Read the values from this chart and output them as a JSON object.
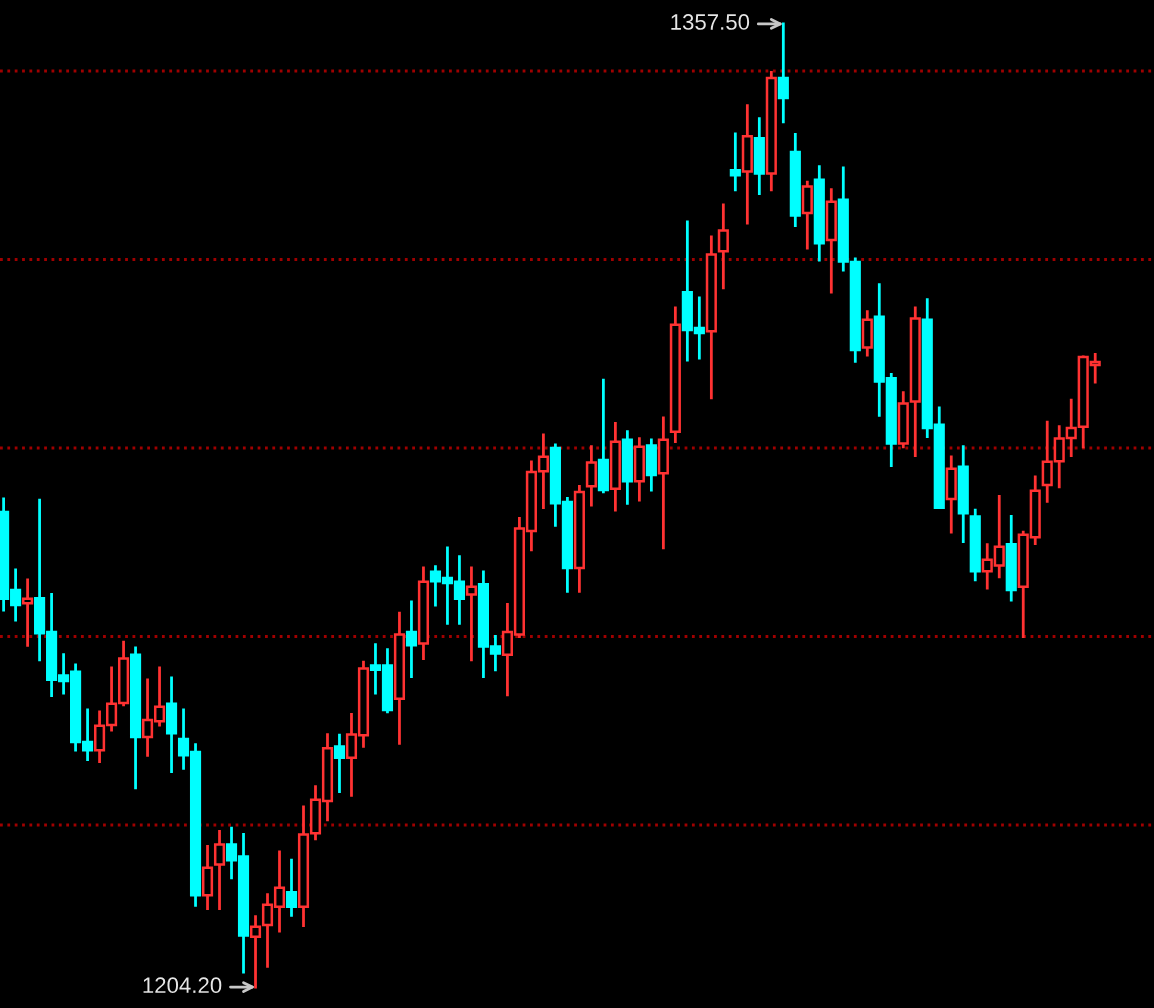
{
  "chart_data": {
    "type": "candlestick",
    "categories": [
      null,
      null,
      null,
      null,
      null,
      null,
      null,
      null,
      null,
      null,
      null,
      null,
      null,
      null,
      null,
      null,
      null,
      null,
      null,
      null,
      null,
      null,
      null,
      null,
      null,
      null,
      null,
      null,
      null,
      null,
      null,
      null,
      null,
      null,
      null,
      null,
      null,
      null,
      null,
      null,
      null,
      null,
      null,
      null,
      null,
      null,
      null,
      null,
      null,
      null,
      null,
      null,
      null,
      null,
      null,
      null,
      null,
      null,
      null,
      null,
      null,
      null,
      null,
      null,
      null,
      null,
      null,
      null,
      null,
      null,
      null,
      null,
      null,
      null,
      null,
      null,
      null,
      null,
      null,
      null,
      null,
      null,
      null,
      null,
      null,
      null,
      null,
      null,
      null,
      null,
      null,
      null
    ],
    "ohlc": [
      [
        1279.8,
        1281.9,
        1264.2,
        1266.0
      ],
      [
        1267.4,
        1270.6,
        1262.6,
        1265.0
      ],
      [
        1265.3,
        1269.0,
        1258.6,
        1266.0
      ],
      [
        1266.1,
        1281.7,
        1256.3,
        1260.5
      ],
      [
        1260.7,
        1266.7,
        1250.6,
        1253.1
      ],
      [
        1253.8,
        1257.1,
        1251.0,
        1252.9
      ],
      [
        1254.4,
        1255.5,
        1241.9,
        1243.2
      ],
      [
        1243.2,
        1248.3,
        1240.4,
        1241.9
      ],
      [
        1241.9,
        1248.0,
        1240.1,
        1245.8
      ],
      [
        1245.9,
        1255.0,
        1245.1,
        1249.3
      ],
      [
        1249.4,
        1259.1,
        1249.1,
        1256.5
      ],
      [
        1257.1,
        1258.2,
        1235.9,
        1244.0
      ],
      [
        1244.0,
        1253.1,
        1241.1,
        1246.7
      ],
      [
        1246.5,
        1255.0,
        1245.9,
        1248.8
      ],
      [
        1249.3,
        1253.4,
        1238.5,
        1244.6
      ],
      [
        1243.7,
        1248.3,
        1239.0,
        1241.1
      ],
      [
        1241.6,
        1242.8,
        1217.2,
        1218.8
      ],
      [
        1218.8,
        1226.6,
        1216.7,
        1223.2
      ],
      [
        1223.7,
        1229.0,
        1216.7,
        1226.9
      ],
      [
        1226.9,
        1229.5,
        1221.6,
        1224.4
      ],
      [
        1225.0,
        1228.5,
        1206.6,
        1212.4
      ],
      [
        1212.2,
        1215.4,
        1204.2,
        1213.8
      ],
      [
        1214.1,
        1218.9,
        1207.5,
        1217.3
      ],
      [
        1217.0,
        1225.7,
        1213.1,
        1220.0
      ],
      [
        1219.3,
        1224.4,
        1215.6,
        1217.0
      ],
      [
        1217.0,
        1232.9,
        1214.0,
        1228.5
      ],
      [
        1228.7,
        1236.1,
        1227.8,
        1234.0
      ],
      [
        1233.8,
        1244.4,
        1230.8,
        1242.2
      ],
      [
        1242.5,
        1244.3,
        1235.3,
        1240.7
      ],
      [
        1240.7,
        1247.6,
        1234.7,
        1244.4
      ],
      [
        1244.3,
        1255.9,
        1242.5,
        1254.9
      ],
      [
        1255.4,
        1258.7,
        1251.0,
        1254.7
      ],
      [
        1255.4,
        1257.9,
        1248.0,
        1248.3
      ],
      [
        1250.1,
        1263.7,
        1243.0,
        1260.3
      ],
      [
        1260.7,
        1265.5,
        1253.6,
        1258.6
      ],
      [
        1258.9,
        1270.9,
        1256.5,
        1268.7
      ],
      [
        1270.3,
        1271.1,
        1265.0,
        1268.8
      ],
      [
        1269.3,
        1274.1,
        1262.1,
        1268.5
      ],
      [
        1268.7,
        1272.7,
        1262.1,
        1266.0
      ],
      [
        1266.7,
        1270.9,
        1256.3,
        1267.9
      ],
      [
        1268.3,
        1270.3,
        1253.6,
        1258.4
      ],
      [
        1258.4,
        1260.0,
        1254.7,
        1257.3
      ],
      [
        1257.1,
        1265.1,
        1250.7,
        1260.7
      ],
      [
        1260.3,
        1278.8,
        1260.0,
        1277.2
      ],
      [
        1276.8,
        1287.8,
        1273.8,
        1286.2
      ],
      [
        1286.3,
        1292.1,
        1280.5,
        1288.6
      ],
      [
        1290.0,
        1290.5,
        1277.7,
        1281.2
      ],
      [
        1281.4,
        1282.0,
        1267.2,
        1270.9
      ],
      [
        1270.9,
        1283.9,
        1267.2,
        1283.0
      ],
      [
        1283.9,
        1290.2,
        1280.9,
        1287.7
      ],
      [
        1288.1,
        1300.8,
        1283.0,
        1283.3
      ],
      [
        1283.5,
        1293.9,
        1280.1,
        1291.0
      ],
      [
        1291.3,
        1292.6,
        1281.2,
        1284.7
      ],
      [
        1284.7,
        1291.5,
        1281.7,
        1290.2
      ],
      [
        1290.4,
        1291.3,
        1283.3,
        1285.7
      ],
      [
        1286.0,
        1294.8,
        1274.1,
        1291.3
      ],
      [
        1292.6,
        1312.3,
        1291.0,
        1309.6
      ],
      [
        1314.8,
        1326.0,
        1304.0,
        1308.8
      ],
      [
        1309.1,
        1313.9,
        1304.3,
        1308.3
      ],
      [
        1308.6,
        1323.6,
        1298.0,
        1320.8
      ],
      [
        1321.3,
        1328.7,
        1315.5,
        1324.6
      ],
      [
        1334.2,
        1340.0,
        1331.1,
        1333.4
      ],
      [
        1334.0,
        1344.5,
        1325.8,
        1339.6
      ],
      [
        1339.3,
        1342.4,
        1330.5,
        1333.7
      ],
      [
        1333.7,
        1349.8,
        1331.1,
        1348.9
      ],
      [
        1348.9,
        1357.5,
        1341.9,
        1345.7
      ],
      [
        1337.1,
        1339.9,
        1325.4,
        1327.0
      ],
      [
        1327.4,
        1332.3,
        1321.8,
        1331.6
      ],
      [
        1332.7,
        1334.8,
        1319.9,
        1322.6
      ],
      [
        1323.1,
        1331.1,
        1314.8,
        1329.2
      ],
      [
        1329.5,
        1334.6,
        1318.3,
        1319.7
      ],
      [
        1319.6,
        1320.1,
        1303.8,
        1305.6
      ],
      [
        1306.0,
        1311.7,
        1304.8,
        1310.4
      ],
      [
        1310.9,
        1316.0,
        1295.2,
        1300.6
      ],
      [
        1301.1,
        1301.7,
        1287.2,
        1290.7
      ],
      [
        1290.7,
        1298.8,
        1290.2,
        1297.1
      ],
      [
        1297.4,
        1312.3,
        1288.8,
        1310.6
      ],
      [
        1310.4,
        1313.6,
        1291.8,
        1293.2
      ],
      [
        1293.7,
        1296.4,
        1280.5,
        1280.5
      ],
      [
        1281.9,
        1288.6,
        1276.6,
        1286.7
      ],
      [
        1287.0,
        1290.2,
        1275.1,
        1279.6
      ],
      [
        1279.1,
        1280.1,
        1269.0,
        1270.4
      ],
      [
        1270.4,
        1274.6,
        1267.7,
        1272.2
      ],
      [
        1271.3,
        1282.3,
        1269.5,
        1274.3
      ],
      [
        1274.7,
        1279.1,
        1265.8,
        1267.4
      ],
      [
        1267.9,
        1276.6,
        1260.0,
        1276.2
      ],
      [
        1275.8,
        1285.4,
        1274.8,
        1283.2
      ],
      [
        1284.1,
        1294.1,
        1281.5,
        1287.8
      ],
      [
        1287.9,
        1293.4,
        1283.8,
        1291.5
      ],
      [
        1291.6,
        1297.6,
        1288.8,
        1293.2
      ],
      [
        1293.4,
        1304.5,
        1290.2,
        1304.5
      ],
      [
        1303.2,
        1304.9,
        1300.5,
        1303.7
      ]
    ],
    "colors": [
      "#00ffff",
      "#00ffff",
      "#ff3232",
      "#00ffff",
      "#00ffff",
      "#00ffff",
      "#00ffff",
      "#00ffff",
      "#ff3232",
      "#ff3232",
      "#ff3232",
      "#00ffff",
      "#ff3232",
      "#ff3232",
      "#00ffff",
      "#00ffff",
      "#00ffff",
      "#ff3232",
      "#ff3232",
      "#00ffff",
      "#00ffff",
      "#ff3232",
      "#ff3232",
      "#ff3232",
      "#00ffff",
      "#ff3232",
      "#ff3232",
      "#ff3232",
      "#00ffff",
      "#ff3232",
      "#ff3232",
      "#00ffff",
      "#00ffff",
      "#ff3232",
      "#00ffff",
      "#ff3232",
      "#00ffff",
      "#00ffff",
      "#00ffff",
      "#ff3232",
      "#00ffff",
      "#00ffff",
      "#ff3232",
      "#ff3232",
      "#ff3232",
      "#ff3232",
      "#00ffff",
      "#00ffff",
      "#ff3232",
      "#ff3232",
      "#00ffff",
      "#ff3232",
      "#00ffff",
      "#ff3232",
      "#00ffff",
      "#ff3232",
      "#ff3232",
      "#00ffff",
      "#00ffff",
      "#ff3232",
      "#ff3232",
      "#00ffff",
      "#ff3232",
      "#00ffff",
      "#ff3232",
      "#00ffff",
      "#00ffff",
      "#ff3232",
      "#00ffff",
      "#ff3232",
      "#00ffff",
      "#00ffff",
      "#ff3232",
      "#00ffff",
      "#00ffff",
      "#ff3232",
      "#ff3232",
      "#00ffff",
      "#00ffff",
      "#ff3232",
      "#00ffff",
      "#00ffff",
      "#ff3232",
      "#ff3232",
      "#00ffff",
      "#ff3232",
      "#ff3232",
      "#ff3232",
      "#ff3232",
      "#ff3232",
      "#ff3232",
      "#ff3232"
    ],
    "ref_lines": [
      {
        "axis": "y",
        "value": 1350,
        "color": "#a00000",
        "line_style": "dotted"
      },
      {
        "axis": "y",
        "value": 1320,
        "color": "#a00000",
        "line_style": "dotted"
      },
      {
        "axis": "y",
        "value": 1290,
        "color": "#a00000",
        "line_style": "dotted"
      },
      {
        "axis": "y",
        "value": 1260,
        "color": "#a00000",
        "line_style": "dotted"
      },
      {
        "axis": "y",
        "value": 1230,
        "color": "#a00000",
        "line_style": "dotted"
      }
    ],
    "annotations": [
      "1357.50",
      "1204.20"
    ],
    "tick_labels": false
  }
}
